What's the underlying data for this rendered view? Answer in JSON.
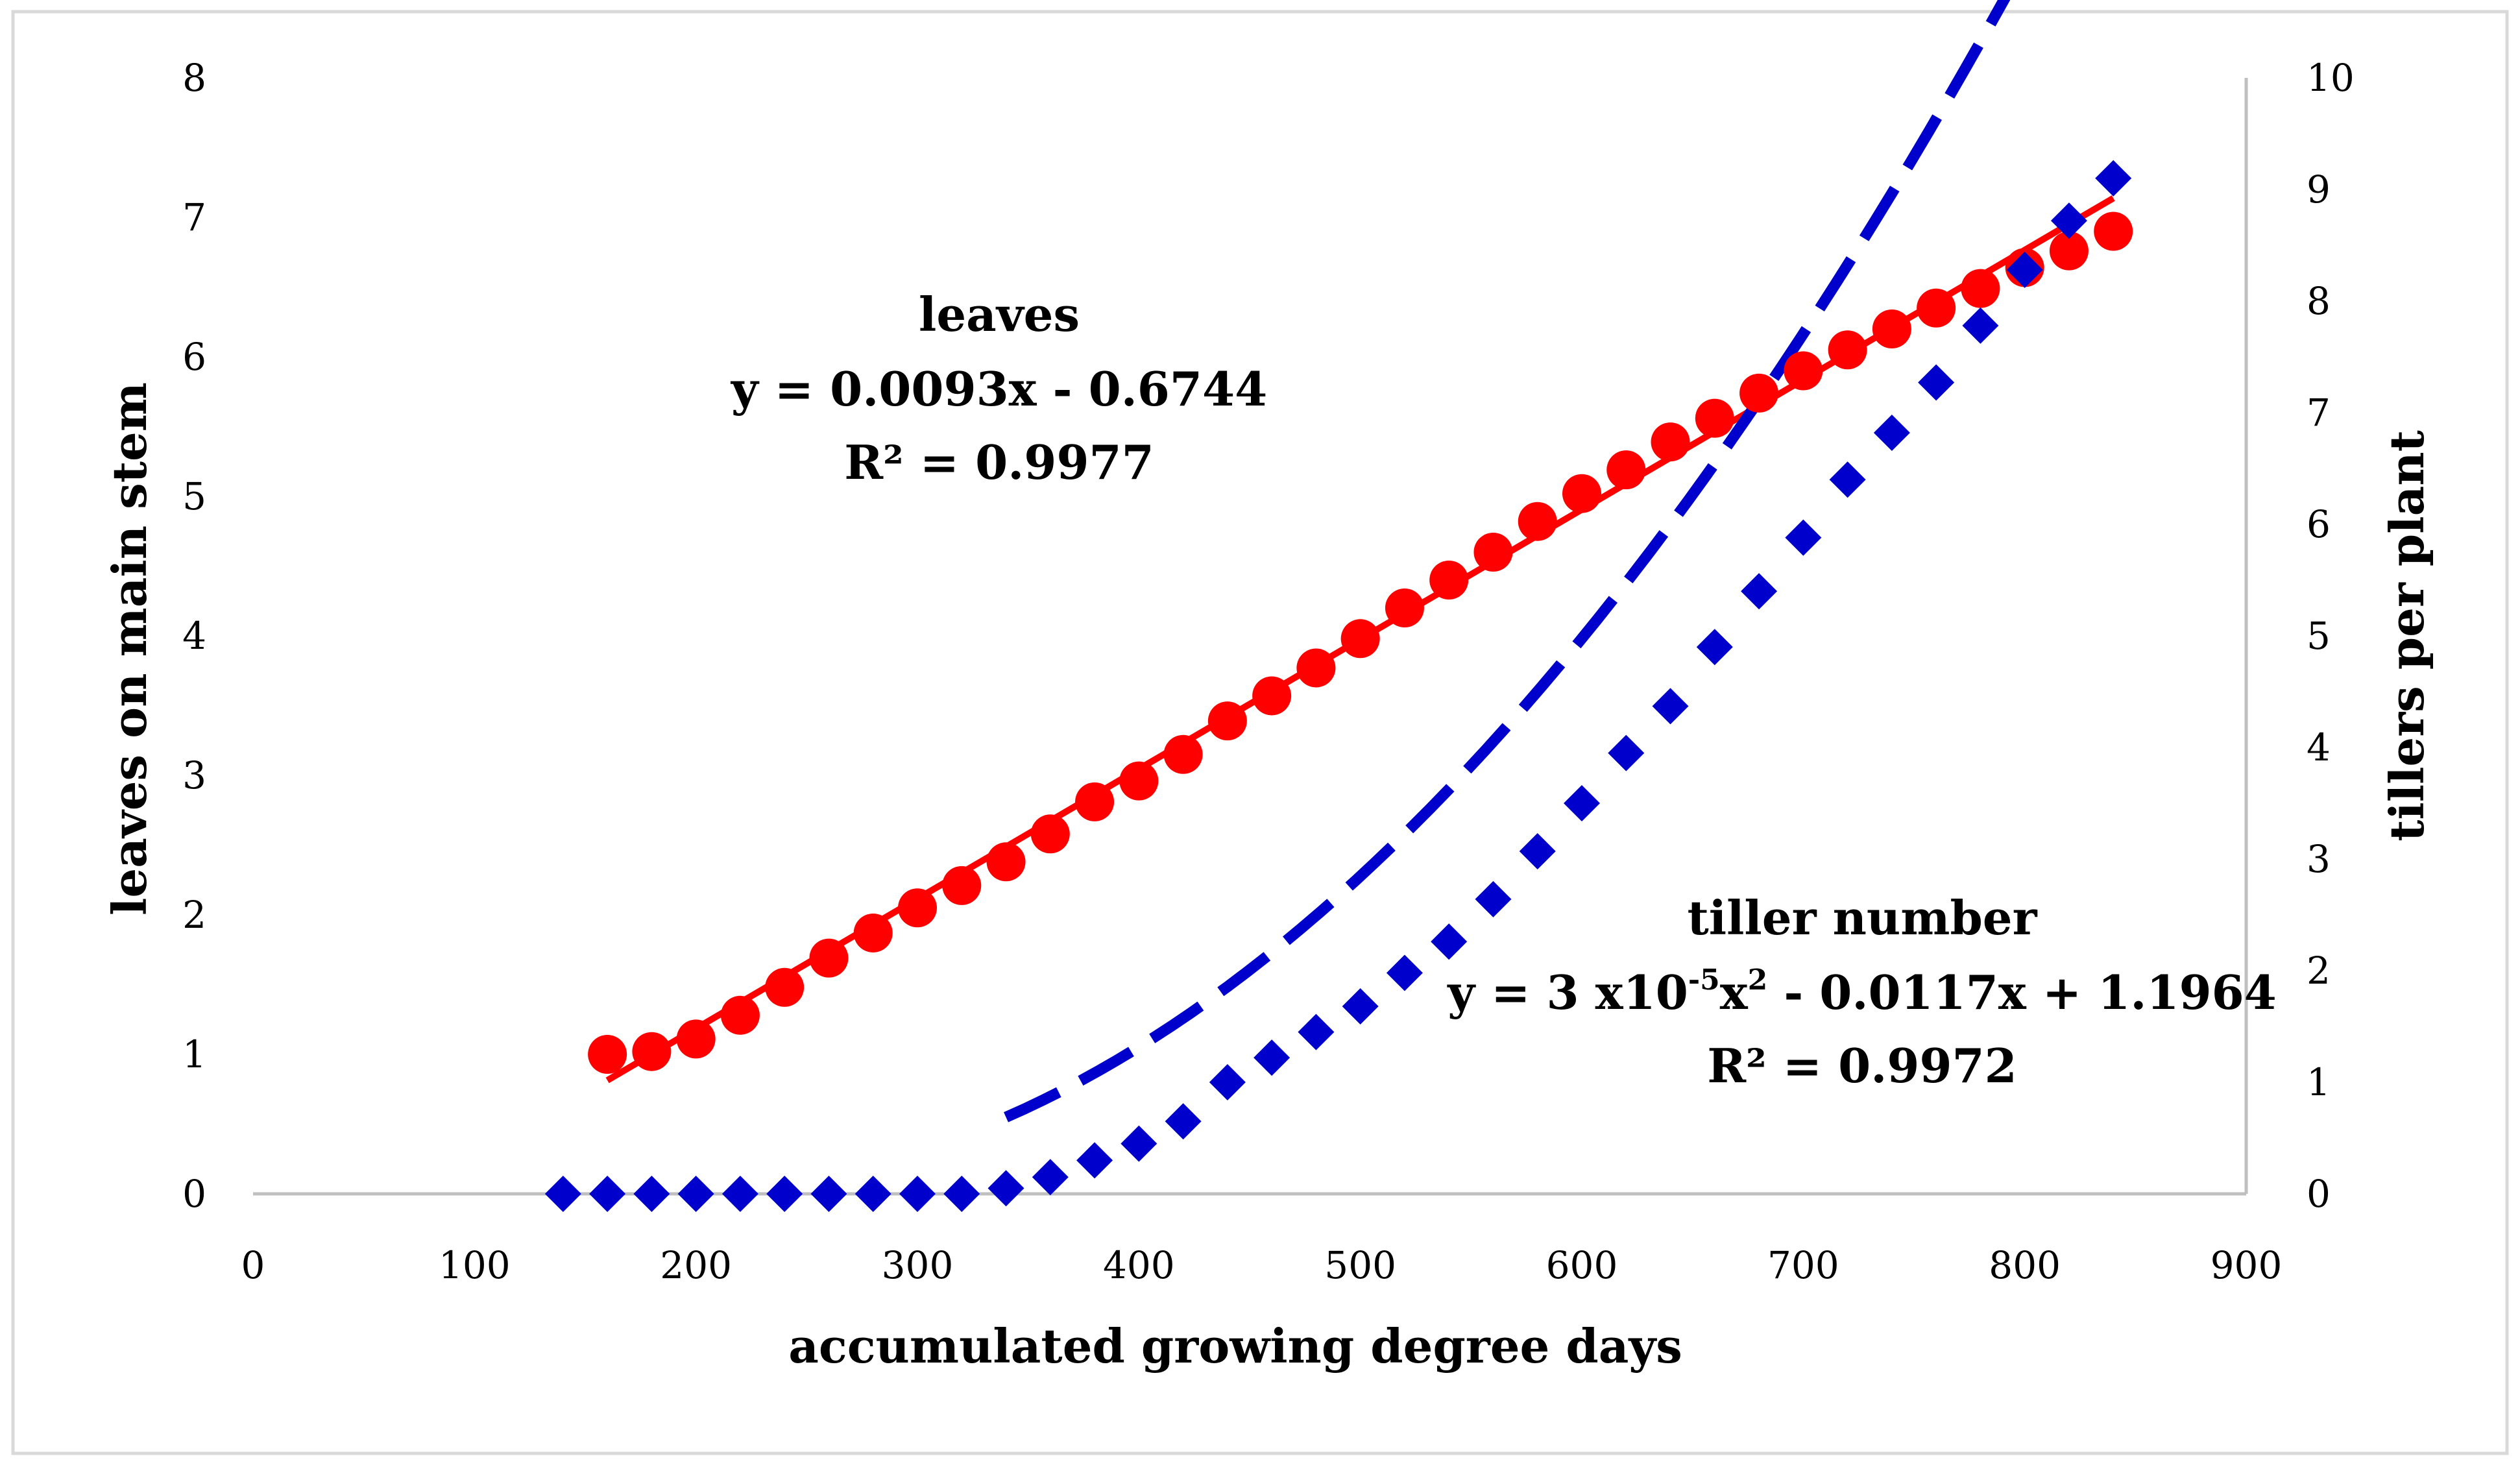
{
  "chart_data": {
    "type": "scatter",
    "xlabel": "accumulated growing degree days",
    "ylabel_left": "leaves on main stem",
    "ylabel_right": "tillers per plant",
    "xlim": [
      0,
      900
    ],
    "ylim_left": [
      0,
      8
    ],
    "ylim_right": [
      0,
      10
    ],
    "x_ticks": [
      "0",
      "100",
      "200",
      "300",
      "400",
      "500",
      "600",
      "700",
      "800",
      "900"
    ],
    "y_left_ticks": [
      "0",
      "1",
      "2",
      "3",
      "4",
      "5",
      "6",
      "7",
      "8"
    ],
    "y_right_ticks": [
      "0",
      "1",
      "2",
      "3",
      "4",
      "5",
      "6",
      "7",
      "8",
      "9",
      "10"
    ],
    "grid": false,
    "series": [
      {
        "name": "leaves",
        "axis": "left",
        "color": "#ff0000",
        "marker": "circle",
        "x": [
          160,
          180,
          200,
          220,
          240,
          260,
          280,
          300,
          320,
          340,
          360,
          380,
          400,
          420,
          440,
          460,
          480,
          500,
          520,
          540,
          560,
          580,
          600,
          620,
          640,
          660,
          680,
          700,
          720,
          740,
          760,
          780,
          800,
          820,
          840
        ],
        "y": [
          1.0,
          1.02,
          1.11,
          1.28,
          1.48,
          1.69,
          1.87,
          2.05,
          2.21,
          2.38,
          2.58,
          2.81,
          2.96,
          3.15,
          3.39,
          3.57,
          3.77,
          3.98,
          4.2,
          4.4,
          4.6,
          4.82,
          5.02,
          5.19,
          5.39,
          5.56,
          5.74,
          5.9,
          6.05,
          6.2,
          6.35,
          6.49,
          6.64,
          6.76,
          6.9
        ]
      },
      {
        "name": "tiller number",
        "axis": "right",
        "color": "#0000cc",
        "marker": "diamond",
        "x": [
          140,
          160,
          180,
          200,
          220,
          240,
          260,
          280,
          300,
          320,
          340,
          360,
          380,
          400,
          420,
          440,
          460,
          480,
          500,
          520,
          540,
          560,
          580,
          600,
          620,
          640,
          660,
          680,
          700,
          720,
          740,
          760,
          780,
          800,
          820,
          840
        ],
        "y": [
          0,
          0,
          0,
          0,
          0,
          0,
          0,
          0,
          0,
          0,
          0.05,
          0.15,
          0.3,
          0.45,
          0.65,
          1.0,
          1.22,
          1.45,
          1.68,
          1.98,
          2.26,
          2.64,
          3.07,
          3.5,
          3.95,
          4.37,
          4.9,
          5.4,
          5.88,
          6.4,
          6.82,
          7.27,
          7.78,
          8.28,
          8.72,
          9.1
        ]
      }
    ],
    "trendlines": [
      {
        "series": "leaves",
        "type": "linear",
        "color": "#ff0000",
        "dash": "solid",
        "a": 0.0093,
        "b": -0.6744,
        "x_range": [
          160,
          840
        ]
      },
      {
        "series": "tiller number",
        "type": "poly2",
        "color": "#0000cc",
        "dash": "dashed",
        "a": 3e-05,
        "b": -0.0117,
        "c": 1.1964,
        "x_range": [
          340,
          840
        ]
      }
    ],
    "annotations": {
      "leaves": {
        "name": "leaves",
        "equation": "y = 0.0093x - 0.6744",
        "r2": "R² = 0.9977"
      },
      "tillers": {
        "name": "tiller number",
        "equation_prefix": "y = 3 x10",
        "equation_exp": "-5",
        "equation_mid": "x",
        "equation_sup2": "2",
        "equation_suffix": " - 0.0117x + 1.1964",
        "r2": "R² = 0.9972"
      }
    }
  }
}
